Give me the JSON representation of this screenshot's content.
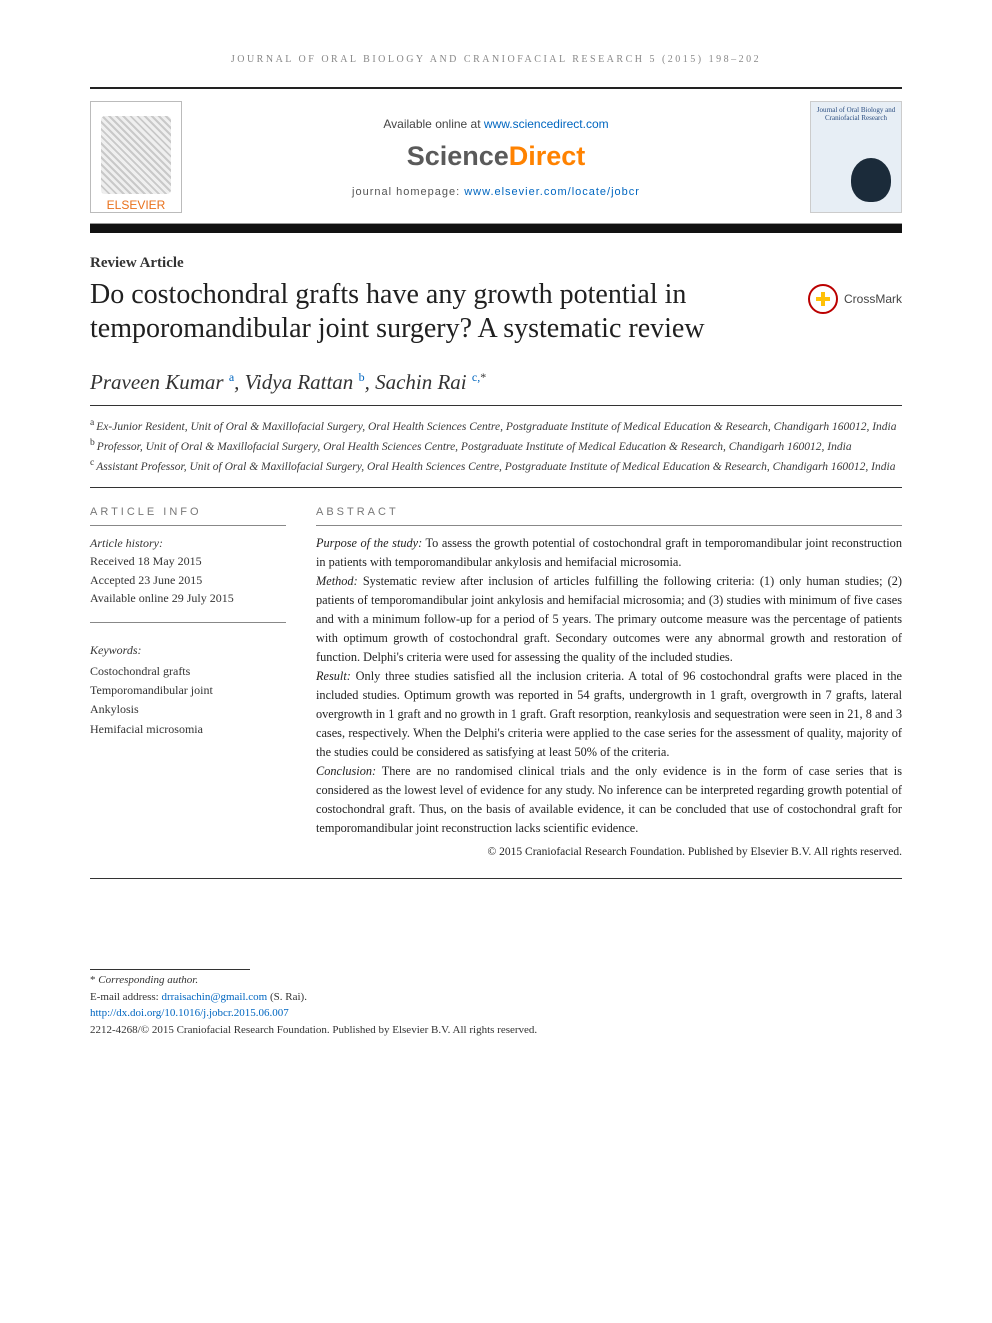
{
  "running_head": "JOURNAL OF ORAL BIOLOGY AND CRANIOFACIAL RESEARCH 5 (2015) 198–202",
  "masthead": {
    "available_prefix": "Available online at ",
    "available_url": "www.sciencedirect.com",
    "sd_science": "Science",
    "sd_direct": "Direct",
    "homepage_prefix": "journal homepage: ",
    "homepage_url": "www.elsevier.com/locate/jobcr",
    "publisher": "ELSEVIER",
    "cover_text": "Journal of Oral Biology and Craniofacial Research"
  },
  "article_type": "Review Article",
  "title": "Do costochondral grafts have any growth potential in temporomandibular joint surgery? A systematic review",
  "crossmark_label": "CrossMark",
  "authors": [
    {
      "name": "Praveen Kumar",
      "sup": "a"
    },
    {
      "name": "Vidya Rattan",
      "sup": "b"
    },
    {
      "name": "Sachin Rai",
      "sup": "c,",
      "corr": "*"
    }
  ],
  "affiliations": [
    {
      "sup": "a",
      "text": "Ex-Junior Resident, Unit of Oral & Maxillofacial Surgery, Oral Health Sciences Centre, Postgraduate Institute of Medical Education & Research, Chandigarh 160012, India"
    },
    {
      "sup": "b",
      "text": "Professor, Unit of Oral & Maxillofacial Surgery, Oral Health Sciences Centre, Postgraduate Institute of Medical Education & Research, Chandigarh 160012, India"
    },
    {
      "sup": "c",
      "text": "Assistant Professor, Unit of Oral & Maxillofacial Surgery, Oral Health Sciences Centre, Postgraduate Institute of Medical Education & Research, Chandigarh 160012, India"
    }
  ],
  "info_heading": "ARTICLE INFO",
  "abstract_heading": "ABSTRACT",
  "history": {
    "label": "Article history:",
    "received": "Received 18 May 2015",
    "accepted": "Accepted 23 June 2015",
    "online": "Available online 29 July 2015"
  },
  "keywords": {
    "label": "Keywords:",
    "items": [
      "Costochondral grafts",
      "Temporomandibular joint",
      "Ankylosis",
      "Hemifacial microsomia"
    ]
  },
  "abstract": {
    "purpose_hd": "Purpose of the study:",
    "purpose": " To assess the growth potential of costochondral graft in temporomandibular joint reconstruction in patients with temporomandibular ankylosis and hemifacial microsomia.",
    "method_hd": "Method:",
    "method": " Systematic review after inclusion of articles fulfilling the following criteria: (1) only human studies; (2) patients of temporomandibular joint ankylosis and hemifacial microsomia; and (3) studies with minimum of five cases and with a minimum follow-up for a period of 5 years. The primary outcome measure was the percentage of patients with optimum growth of costochondral graft. Secondary outcomes were any abnormal growth and restoration of function. Delphi's criteria were used for assessing the quality of the included studies.",
    "result_hd": "Result:",
    "result": " Only three studies satisfied all the inclusion criteria. A total of 96 costochondral grafts were placed in the included studies. Optimum growth was reported in 54 grafts, undergrowth in 1 graft, overgrowth in 7 grafts, lateral overgrowth in 1 graft and no growth in 1 graft. Graft resorption, reankylosis and sequestration were seen in 21, 8 and 3 cases, respectively. When the Delphi's criteria were applied to the case series for the assessment of quality, majority of the studies could be considered as satisfying at least 50% of the criteria.",
    "conclusion_hd": "Conclusion:",
    "conclusion": " There are no randomised clinical trials and the only evidence is in the form of case series that is considered as the lowest level of evidence for any study. No inference can be interpreted regarding growth potential of costochondral graft. Thus, on the basis of available evidence, it can be concluded that use of costochondral graft for temporomandibular joint reconstruction lacks scientific evidence."
  },
  "abstract_copyright": "© 2015 Craniofacial Research Foundation. Published by Elsevier B.V. All rights reserved.",
  "footnotes": {
    "corr_marker": "*",
    "corr_text": "Corresponding author.",
    "email_label": "E-mail address: ",
    "email": "drraisachin@gmail.com",
    "email_suffix": " (S. Rai).",
    "doi": "http://dx.doi.org/10.1016/j.jobcr.2015.06.007",
    "issn_line": "2212-4268/© 2015 Craniofacial Research Foundation. Published by Elsevier B.V. All rights reserved."
  },
  "colors": {
    "link": "#0066c0",
    "orange": "#ff8200",
    "rule": "#111111",
    "text": "#222222"
  }
}
